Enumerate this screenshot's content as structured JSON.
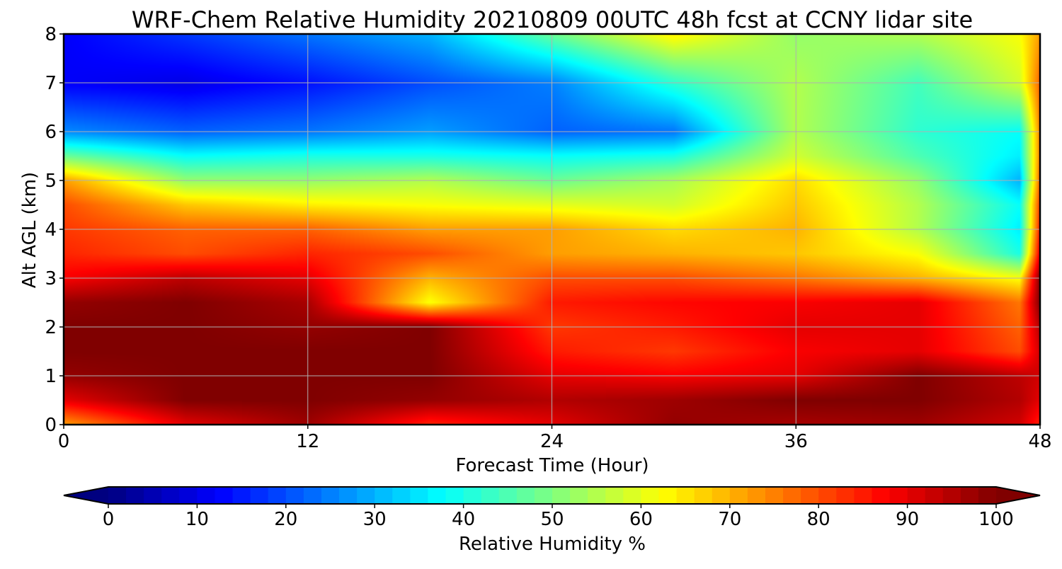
{
  "chart_data": {
    "type": "heatmap",
    "title": "WRF-Chem Relative Humidity 20210809 00UTC 48h fcst at CCNY lidar site",
    "xlabel": "Forecast Time (Hour)",
    "ylabel": "Alt AGL (km)",
    "xlim": [
      0,
      48
    ],
    "ylim": [
      0,
      8
    ],
    "x_ticks": [
      0,
      12,
      24,
      36,
      48
    ],
    "y_ticks": [
      0,
      1,
      2,
      3,
      4,
      5,
      6,
      7,
      8
    ],
    "grid": true,
    "colorscale": "jet",
    "colorbar": {
      "label": "Relative Humidity %",
      "ticks": [
        0,
        10,
        20,
        30,
        40,
        50,
        60,
        70,
        80,
        90,
        100
      ],
      "range": [
        0,
        100
      ],
      "extend": "both",
      "orientation": "horizontal",
      "placement": "bottom"
    },
    "x": [
      0,
      6,
      12,
      18,
      24,
      30,
      36,
      42,
      47,
      48
    ],
    "y": [
      0,
      0.5,
      1,
      1.5,
      2,
      2.5,
      3,
      3.5,
      4,
      4.5,
      5,
      5.5,
      6,
      7,
      8
    ],
    "z": [
      [
        72,
        90,
        97,
        84,
        90,
        98,
        96,
        97,
        92,
        84
      ],
      [
        90,
        100,
        100,
        98,
        95,
        97,
        100,
        100,
        95,
        90
      ],
      [
        98,
        100,
        100,
        100,
        90,
        88,
        90,
        100,
        94,
        92
      ],
      [
        100,
        100,
        100,
        100,
        85,
        82,
        88,
        90,
        80,
        92
      ],
      [
        100,
        100,
        98,
        100,
        82,
        85,
        90,
        90,
        78,
        95
      ],
      [
        98,
        100,
        96,
        62,
        85,
        87,
        88,
        90,
        76,
        100
      ],
      [
        88,
        94,
        90,
        70,
        80,
        80,
        76,
        70,
        62,
        100
      ],
      [
        84,
        80,
        84,
        80,
        72,
        70,
        68,
        62,
        40,
        90
      ],
      [
        82,
        78,
        78,
        72,
        72,
        66,
        70,
        55,
        36,
        85
      ],
      [
        80,
        68,
        64,
        62,
        60,
        58,
        68,
        55,
        38,
        82
      ],
      [
        72,
        52,
        52,
        55,
        48,
        54,
        66,
        52,
        30,
        78
      ],
      [
        48,
        38,
        40,
        40,
        38,
        40,
        58,
        45,
        36,
        75
      ],
      [
        26,
        22,
        24,
        28,
        22,
        24,
        55,
        42,
        38,
        75
      ],
      [
        12,
        10,
        14,
        20,
        25,
        42,
        55,
        44,
        58,
        78
      ],
      [
        12,
        18,
        24,
        30,
        48,
        64,
        52,
        55,
        62,
        72
      ]
    ]
  }
}
